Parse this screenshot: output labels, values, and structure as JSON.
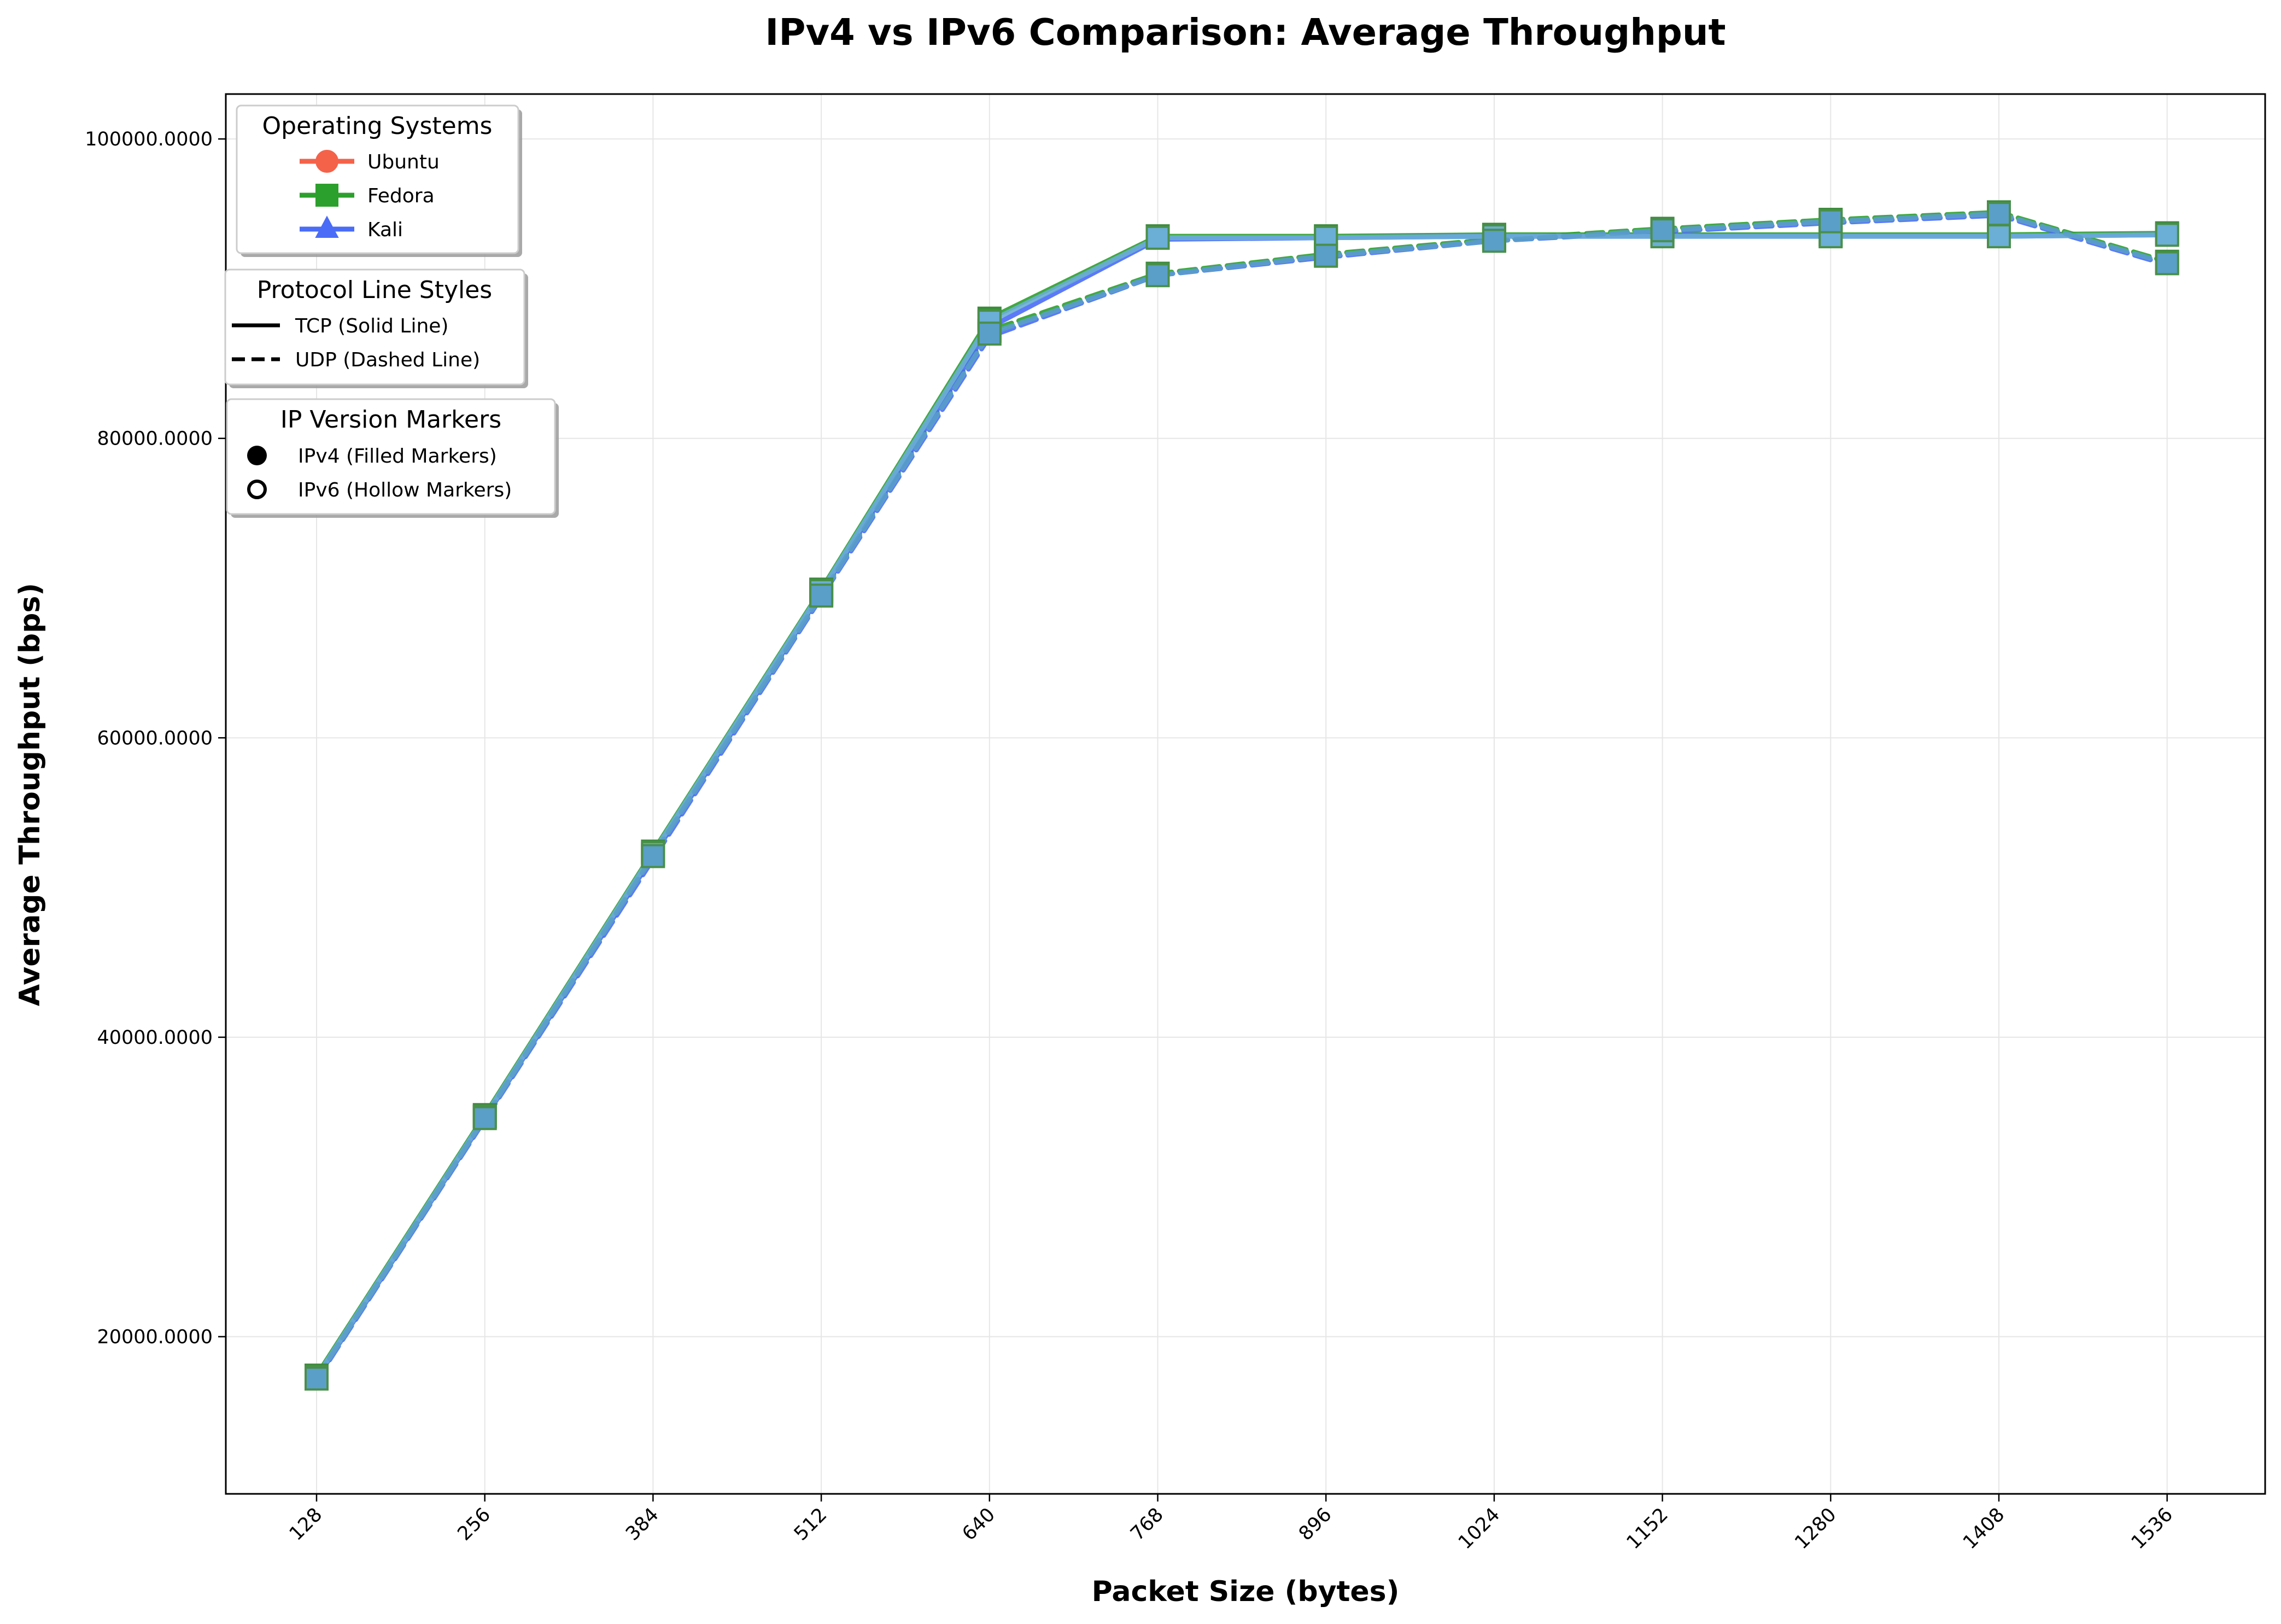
{
  "chart_data": {
    "type": "line",
    "title": "IPv4 vs IPv6 Comparison: Average Throughput",
    "xlabel": "Packet Size (bytes)",
    "ylabel": "Average Throughput (bps)",
    "x": [
      128,
      256,
      384,
      512,
      640,
      768,
      896,
      1024,
      1152,
      1280,
      1408,
      1536
    ],
    "x_tick_labels": [
      "128",
      "256",
      "384",
      "512",
      "640",
      "768",
      "896",
      "1024",
      "1152",
      "1280",
      "1408",
      "1536"
    ],
    "y_ticks": [
      20000,
      40000,
      60000,
      80000,
      100000
    ],
    "y_tick_labels": [
      "20000.0000",
      "40000.0000",
      "60000.0000",
      "80000.0000",
      "100000.0000"
    ],
    "ylim": [
      9500,
      103000
    ],
    "grid": true,
    "colors": {
      "ubuntu": "#f4624a",
      "fedora": "#2ca02c",
      "kali": "#4a6cf7",
      "overlay": "#6baed6",
      "overlay_dark": "#5a9fc8"
    },
    "legends": [
      {
        "title": "Operating Systems",
        "entries": [
          {
            "label": "Ubuntu",
            "color": "#f4624a",
            "marker": "circle"
          },
          {
            "label": "Fedora",
            "color": "#2ca02c",
            "marker": "square"
          },
          {
            "label": "Kali",
            "color": "#4a6cf7",
            "marker": "triangle"
          }
        ]
      },
      {
        "title": "Protocol Line Styles",
        "entries": [
          {
            "label": "TCP (Solid Line)",
            "style": "solid"
          },
          {
            "label": "UDP (Dashed Line)",
            "style": "dashed"
          }
        ]
      },
      {
        "title": "IP Version Markers",
        "entries": [
          {
            "label": "IPv4 (Filled Markers)",
            "marker": "filled"
          },
          {
            "label": "IPv6 (Hollow Markers)",
            "marker": "hollow"
          }
        ]
      }
    ],
    "series": [
      {
        "os": "Fedora",
        "protocol": "TCP",
        "ip": "IPv4",
        "color": "#2ca02c",
        "marker": "square",
        "style": "solid",
        "values": [
          17400,
          34800,
          52400,
          69900,
          88000,
          93500,
          93500,
          93600,
          93600,
          93600,
          93600,
          93700
        ]
      },
      {
        "os": "Fedora",
        "protocol": "UDP",
        "ip": "IPv4",
        "color": "#2ca02c",
        "marker": "square",
        "style": "dashed",
        "values": [
          17300,
          34700,
          52200,
          69600,
          87200,
          91000,
          92300,
          93300,
          94000,
          94600,
          95100,
          91800
        ]
      },
      {
        "os": "Kali",
        "protocol": "TCP",
        "ip": "IPv4",
        "color": "#4a6cf7",
        "marker": "triangle",
        "style": "solid",
        "values": [
          17200,
          34600,
          52100,
          69700,
          87400,
          93300,
          93400,
          93500,
          93500,
          93500,
          93500,
          93600
        ]
      },
      {
        "os": "Kali",
        "protocol": "UDP",
        "ip": "IPv4",
        "color": "#4a6cf7",
        "marker": "triangle",
        "style": "dashed",
        "values": [
          17100,
          34500,
          51900,
          69400,
          86800,
          90900,
          92100,
          93200,
          93800,
          94400,
          94900,
          91600
        ]
      },
      {
        "os": "Ubuntu",
        "protocol": "TCP",
        "ip": "IPv4",
        "color": "#6baed6",
        "marker": "square",
        "style": "solid",
        "values": [
          17300,
          34700,
          52300,
          69800,
          87800,
          93400,
          93400,
          93500,
          93500,
          93500,
          93500,
          93600
        ]
      },
      {
        "os": "Ubuntu",
        "protocol": "UDP",
        "ip": "IPv4",
        "color": "#5a9fc8",
        "marker": "square",
        "style": "dashed",
        "values": [
          17200,
          34600,
          52100,
          69500,
          87000,
          90900,
          92200,
          93200,
          93900,
          94500,
          95000,
          91700
        ]
      }
    ]
  }
}
